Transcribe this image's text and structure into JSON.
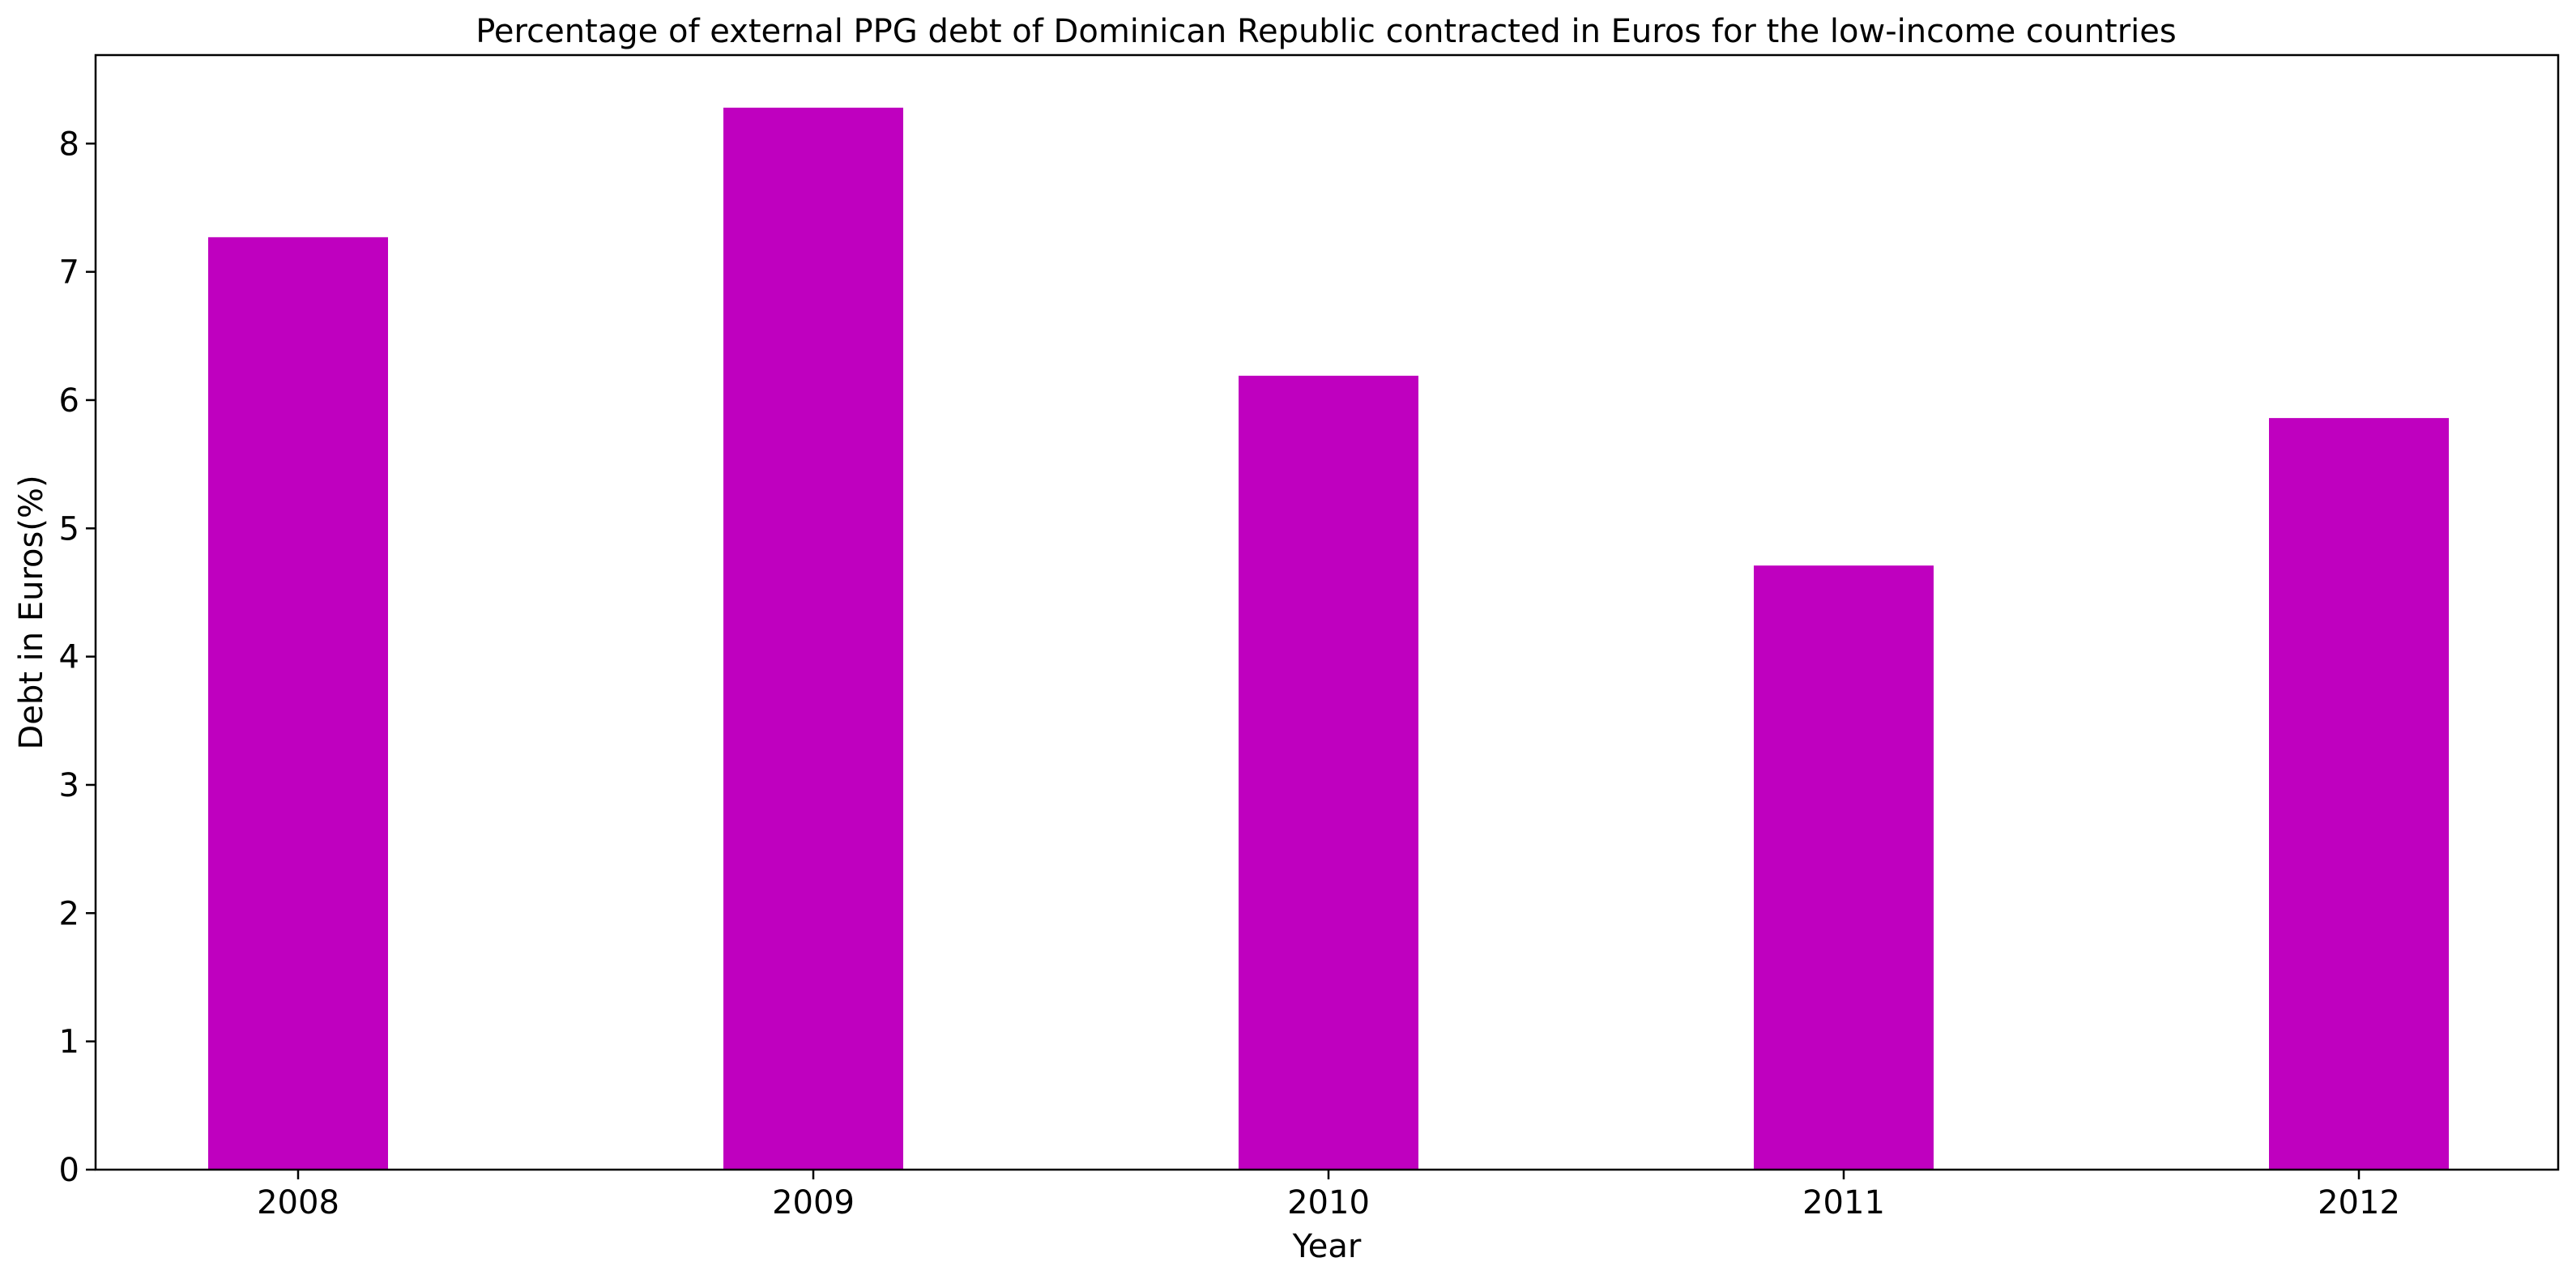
{
  "chart_data": {
    "type": "bar",
    "title": "Percentage of external PPG debt of Dominican Republic contracted in Euros for the low-income countries",
    "xlabel": "Year",
    "ylabel": "Debt in Euros(%)",
    "categories": [
      "2008",
      "2009",
      "2010",
      "2011",
      "2012"
    ],
    "values": [
      7.27,
      8.28,
      6.19,
      4.71,
      5.86
    ],
    "ylim": [
      0,
      8.69
    ],
    "yticks": [
      0,
      1,
      2,
      3,
      4,
      5,
      6,
      7,
      8
    ],
    "bar_color": "#bf00bf",
    "grid": false,
    "legend": "none"
  }
}
